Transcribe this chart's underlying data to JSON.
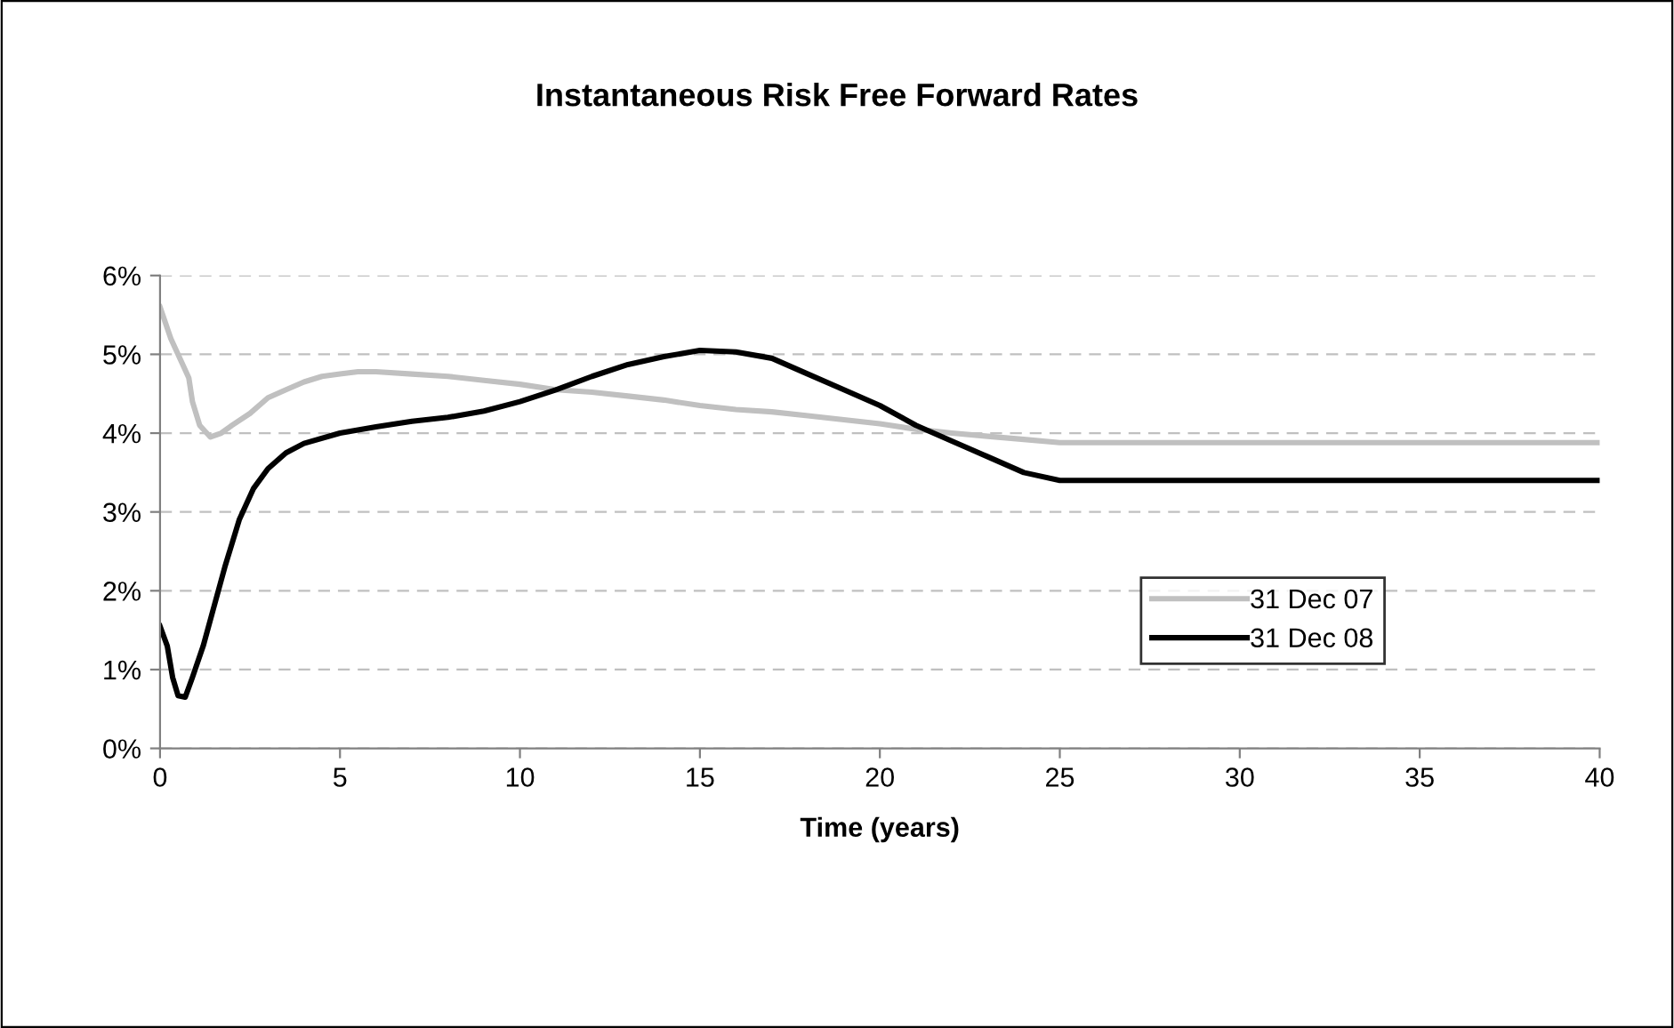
{
  "chart_data": {
    "type": "line",
    "title": "Instantaneous Risk Free Forward Rates",
    "xlabel": "Time (years)",
    "xlim": [
      0,
      40
    ],
    "xticks": [
      0,
      5,
      10,
      15,
      20,
      25,
      30,
      35,
      40
    ],
    "ylim": [
      0,
      6
    ],
    "yticks": [
      {
        "value": 0,
        "label": "0%"
      },
      {
        "value": 1,
        "label": "1%"
      },
      {
        "value": 2,
        "label": "2%"
      },
      {
        "value": 3,
        "label": "3%"
      },
      {
        "value": 4,
        "label": "4%"
      },
      {
        "value": 5,
        "label": "5%"
      },
      {
        "value": 6,
        "label": "6%"
      }
    ],
    "grid": "y",
    "legend": "right",
    "marker": "none",
    "line_style": "solid",
    "series": [
      {
        "name": "31 Dec 07",
        "color": "#c0c0c0",
        "x": [
          0,
          0.3,
          0.6,
          0.8,
          0.9,
          1.1,
          1.4,
          1.7,
          2,
          2.5,
          3,
          3.5,
          4,
          4.5,
          5,
          5.5,
          6,
          7,
          8,
          9,
          10,
          11,
          12,
          13,
          14,
          15,
          16,
          17,
          18,
          19,
          20,
          21,
          22,
          23,
          24,
          25,
          40
        ],
        "values": [
          5.6,
          5.2,
          4.9,
          4.7,
          4.4,
          4.1,
          3.95,
          4.0,
          4.1,
          4.25,
          4.45,
          4.55,
          4.65,
          4.72,
          4.75,
          4.78,
          4.78,
          4.75,
          4.72,
          4.67,
          4.62,
          4.55,
          4.52,
          4.47,
          4.42,
          4.35,
          4.3,
          4.27,
          4.22,
          4.17,
          4.12,
          4.05,
          4.0,
          3.96,
          3.92,
          3.88,
          3.88
        ]
      },
      {
        "name": "31 Dec 08",
        "color": "#000000",
        "x": [
          0,
          0.2,
          0.35,
          0.5,
          0.7,
          0.9,
          1.2,
          1.5,
          1.8,
          2.2,
          2.6,
          3,
          3.5,
          4,
          5,
          6,
          7,
          8,
          9,
          10,
          11,
          12,
          13,
          14,
          15,
          16,
          17,
          18,
          19,
          20,
          21,
          22,
          23,
          24,
          25,
          40
        ],
        "values": [
          1.55,
          1.3,
          0.9,
          0.67,
          0.65,
          0.9,
          1.3,
          1.8,
          2.3,
          2.9,
          3.3,
          3.55,
          3.75,
          3.87,
          4.0,
          4.08,
          4.15,
          4.2,
          4.28,
          4.4,
          4.55,
          4.72,
          4.87,
          4.97,
          5.05,
          5.03,
          4.95,
          4.75,
          4.55,
          4.35,
          4.1,
          3.9,
          3.7,
          3.5,
          3.4,
          3.4
        ]
      }
    ]
  }
}
